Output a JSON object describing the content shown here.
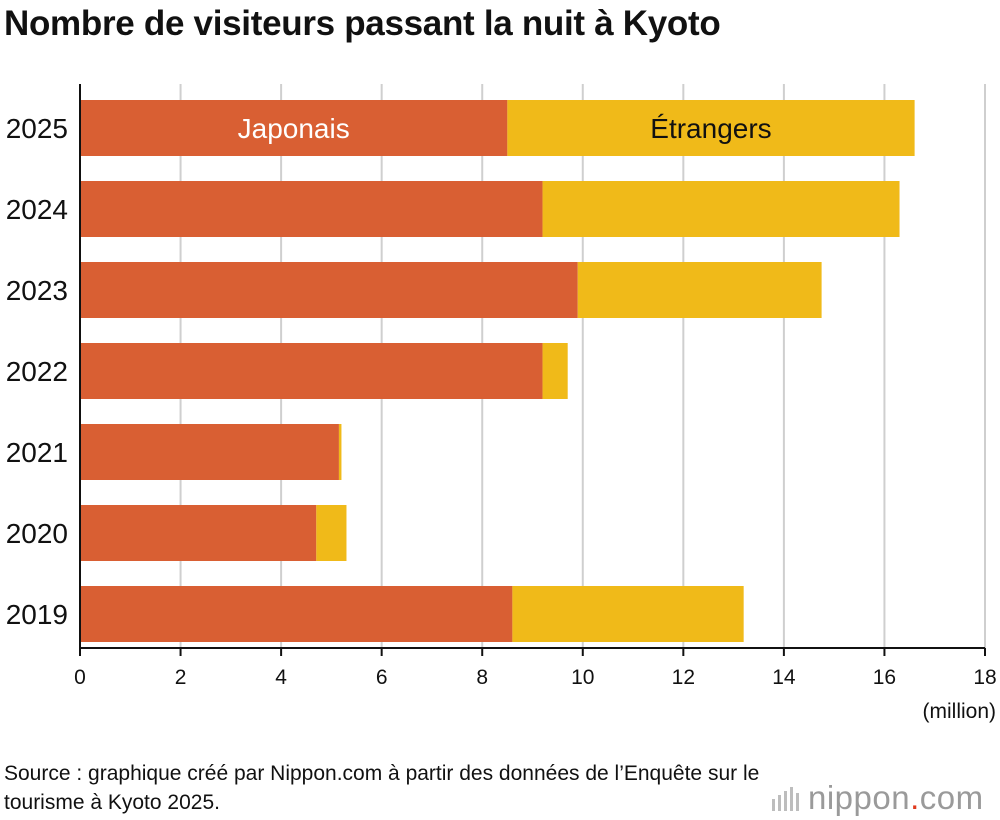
{
  "chart_data": {
    "type": "bar",
    "orientation": "horizontal",
    "stacked": true,
    "title": "Nombre de visiteurs passant la nuit à Kyoto",
    "categories": [
      "2025",
      "2024",
      "2023",
      "2022",
      "2021",
      "2020",
      "2019"
    ],
    "series": [
      {
        "name": "Japonais",
        "values": [
          8.5,
          9.2,
          9.9,
          9.2,
          5.15,
          4.7,
          8.6
        ]
      },
      {
        "name": "Étrangers",
        "values": [
          8.1,
          7.1,
          4.85,
          0.5,
          0.05,
          0.6,
          4.6
        ]
      }
    ],
    "xlim": [
      0,
      18
    ],
    "xticks": [
      0,
      2,
      4,
      6,
      8,
      10,
      12,
      14,
      16,
      18
    ],
    "xunit": "(million)",
    "grid": "vertical",
    "legend": "inside-top-bar"
  },
  "colors": {
    "japonais": "#d95f33",
    "etrangers": "#f0ba19",
    "grid": "#cfcfcf",
    "text": "#111111"
  },
  "source": "Source : graphique créé par Nippon.com à partir des données de l’Enquête sur le tourisme à Kyoto 2025.",
  "logo": {
    "name": "nippon",
    "dot": ".",
    "suffix": "com"
  }
}
